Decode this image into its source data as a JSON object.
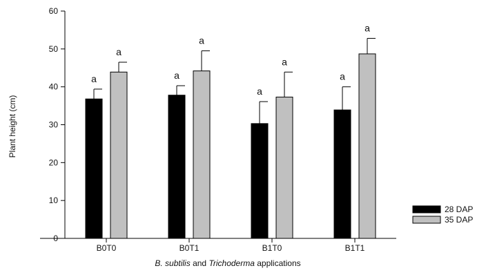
{
  "chart_data": {
    "type": "bar",
    "categories": [
      "B0T0",
      "B0T1",
      "B1T0",
      "B1T1"
    ],
    "series": [
      {
        "name": "28 DAP",
        "values": [
          36.8,
          37.8,
          30.3,
          33.9
        ],
        "errors": [
          2.6,
          2.5,
          5.8,
          6.1
        ],
        "labels": [
          "a",
          "a",
          "a",
          "a"
        ],
        "color": "#000000"
      },
      {
        "name": "35 DAP",
        "values": [
          43.9,
          44.2,
          37.3,
          48.7
        ],
        "errors": [
          2.6,
          5.3,
          6.6,
          4.1
        ],
        "labels": [
          "a",
          "a",
          "a",
          "a"
        ],
        "color": "#c0c0c0"
      }
    ],
    "ylabel": "Plant height (cm)",
    "xlabel_parts": [
      {
        "text": "B. subtilis",
        "italic": true
      },
      {
        "text": " and ",
        "italic": false
      },
      {
        "text": "Trichoderma",
        "italic": true
      },
      {
        "text": " applications",
        "italic": false
      }
    ],
    "ylim": [
      0,
      60
    ],
    "yticks": [
      "0",
      "10",
      "20",
      "30",
      "40",
      "50",
      "60"
    ],
    "legend_position": "bottom-right",
    "grid": false
  }
}
